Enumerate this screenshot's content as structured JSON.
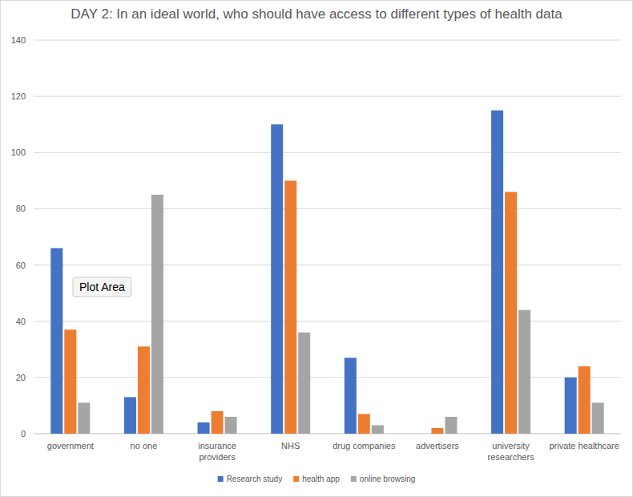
{
  "chart_data": {
    "type": "bar",
    "title": "DAY 2: In an ideal world, who should have access to different types of health data",
    "categories": [
      "government",
      "no one",
      "insurance providers",
      "NHS",
      "drug companies",
      "advertisers",
      "university researchers",
      "private healthcare"
    ],
    "series": [
      {
        "name": "Research study",
        "color": "#4472c4",
        "values": [
          66,
          13,
          4,
          110,
          27,
          0,
          115,
          20
        ]
      },
      {
        "name": "health app",
        "color": "#ed7d31",
        "values": [
          37,
          31,
          8,
          90,
          7,
          2,
          86,
          24
        ]
      },
      {
        "name": "online browsing",
        "color": "#a5a5a5",
        "values": [
          11,
          85,
          6,
          36,
          3,
          6,
          44,
          11
        ]
      }
    ],
    "ylim": [
      0,
      140
    ],
    "yticks": [
      0,
      20,
      40,
      60,
      80,
      100,
      120,
      140
    ],
    "grid": true,
    "legend": "bottom",
    "annotations": [
      "Plot Area"
    ]
  }
}
